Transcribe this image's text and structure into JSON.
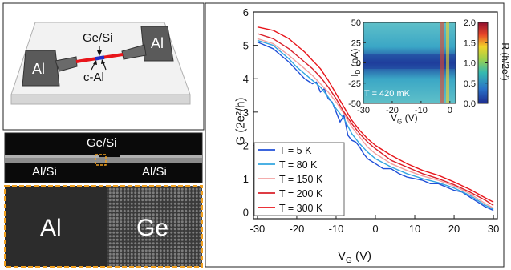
{
  "device": {
    "labels": {
      "left_contact": "Al",
      "right_contact": "Al",
      "wire": "Ge/Si",
      "junction": "c-Al"
    },
    "colors": {
      "contact": "#5a5a5a",
      "substrate": "#f2f2f2",
      "wire_red": "#e8151b",
      "wire_blue": "#2230c8"
    }
  },
  "sem": {
    "labels": {
      "top": "Ge/Si",
      "left": "Al/Si",
      "right": "Al/Si"
    },
    "colors": {
      "box": "#f0a020"
    }
  },
  "tem": {
    "labels": {
      "left": "Al",
      "right": "Ge"
    },
    "colors": {
      "border": "#f0a020"
    }
  },
  "chart_data": [
    {
      "type": "line",
      "xlabel": "V_G (V)",
      "ylabel": "G (2e²/h)",
      "xlim": [
        -31,
        31
      ],
      "ylim": [
        -0.2,
        6
      ],
      "xticks": [
        -30,
        -20,
        -10,
        0,
        10,
        20,
        30
      ],
      "yticks": [
        0,
        1,
        2,
        3,
        4,
        5,
        6
      ],
      "legend_position": "bottom-left",
      "series": [
        {
          "name": "T = 5 K",
          "color": "#1f4fd8",
          "x": [
            -30,
            -26,
            -24,
            -22,
            -20,
            -18,
            -16,
            -15,
            -14,
            -13,
            -12,
            -11,
            -10,
            -9,
            -8,
            -7,
            -6,
            -5,
            -4,
            -3,
            -2,
            0,
            2,
            4,
            6,
            8,
            10,
            12,
            14,
            16,
            18,
            20,
            22,
            24,
            26,
            28,
            30
          ],
          "y": [
            5.1,
            4.9,
            4.7,
            4.5,
            4.25,
            4.0,
            3.85,
            3.9,
            3.6,
            3.7,
            3.4,
            3.3,
            3.0,
            2.7,
            2.9,
            2.3,
            2.15,
            2.1,
            1.95,
            1.75,
            1.6,
            1.45,
            1.3,
            1.3,
            1.15,
            1.05,
            1.0,
            0.95,
            0.85,
            0.85,
            0.75,
            0.65,
            0.6,
            0.45,
            0.3,
            0.15,
            0.05
          ]
        },
        {
          "name": "T = 80 K",
          "color": "#33a6e0",
          "x": [
            -30,
            -26,
            -22,
            -20,
            -18,
            -16,
            -14,
            -12,
            -10,
            -8,
            -6,
            -4,
            -2,
            0,
            4,
            8,
            12,
            16,
            20,
            24,
            28,
            30
          ],
          "y": [
            5.15,
            5.0,
            4.6,
            4.35,
            4.15,
            3.95,
            3.75,
            3.45,
            3.1,
            2.8,
            2.35,
            2.05,
            1.8,
            1.6,
            1.35,
            1.15,
            1.0,
            0.88,
            0.72,
            0.5,
            0.2,
            0.08
          ]
        },
        {
          "name": "T = 150 K",
          "color": "#f2a0a0",
          "x": [
            -30,
            -26,
            -22,
            -20,
            -18,
            -16,
            -14,
            -12,
            -10,
            -8,
            -6,
            -4,
            -2,
            0,
            4,
            8,
            12,
            16,
            20,
            24,
            28,
            30
          ],
          "y": [
            5.2,
            5.05,
            4.7,
            4.5,
            4.3,
            4.1,
            3.85,
            3.6,
            3.3,
            2.95,
            2.55,
            2.25,
            1.95,
            1.75,
            1.45,
            1.25,
            1.08,
            0.95,
            0.78,
            0.55,
            0.25,
            0.12
          ]
        },
        {
          "name": "T = 200 K",
          "color": "#d9202a",
          "x": [
            -30,
            -26,
            -22,
            -20,
            -18,
            -16,
            -14,
            -12,
            -10,
            -8,
            -6,
            -4,
            -2,
            0,
            4,
            8,
            12,
            16,
            20,
            24,
            28,
            30
          ],
          "y": [
            5.35,
            5.2,
            4.9,
            4.7,
            4.5,
            4.3,
            4.05,
            3.75,
            3.4,
            3.0,
            2.65,
            2.35,
            2.1,
            1.9,
            1.55,
            1.35,
            1.15,
            1.0,
            0.82,
            0.6,
            0.35,
            0.2
          ]
        },
        {
          "name": "T = 300 K",
          "color": "#e8151b",
          "x": [
            -30,
            -26,
            -22,
            -20,
            -18,
            -16,
            -14,
            -12,
            -10,
            -8,
            -6,
            -4,
            -2,
            0,
            4,
            8,
            12,
            16,
            20,
            24,
            28,
            30
          ],
          "y": [
            5.55,
            5.45,
            5.2,
            5.0,
            4.8,
            4.55,
            4.3,
            3.95,
            3.55,
            3.15,
            2.75,
            2.45,
            2.2,
            2.0,
            1.7,
            1.45,
            1.25,
            1.1,
            0.9,
            0.68,
            0.42,
            0.3
          ]
        }
      ]
    },
    {
      "type": "heatmap",
      "xlabel": "V_G (V)",
      "ylabel": "I_D (nA)",
      "xlim": [
        -30,
        2
      ],
      "ylim": [
        -50,
        50
      ],
      "xticks": [
        -30,
        -20,
        -10,
        0
      ],
      "yticks": [
        -50,
        -25,
        0,
        25,
        50
      ],
      "colorbar": {
        "label": "R (h/2e²)",
        "range": [
          0,
          2
        ],
        "ticks": [
          "0.0",
          "0.5",
          "1.0",
          "1.5",
          "2.0"
        ]
      },
      "annotation": "T = 420 mK"
    }
  ]
}
